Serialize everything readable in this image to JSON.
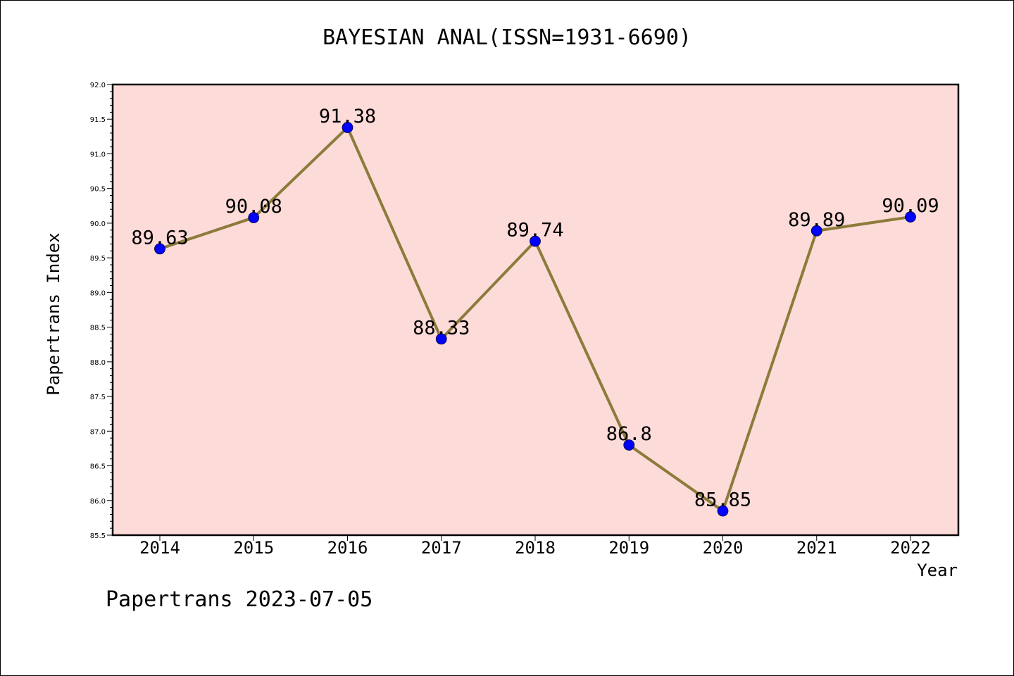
{
  "chart_data": {
    "type": "line",
    "title": "BAYESIAN ANAL(ISSN=1931-6690)",
    "xlabel": "Year",
    "ylabel": "Papertrans Index",
    "categories": [
      "2014",
      "2015",
      "2016",
      "2017",
      "2018",
      "2019",
      "2020",
      "2021",
      "2022"
    ],
    "series": [
      {
        "name": "Papertrans Index",
        "values": [
          89.63,
          90.08,
          91.38,
          88.33,
          89.74,
          86.8,
          85.85,
          89.89,
          90.09
        ],
        "labels": [
          "89.63",
          "90.08",
          "91.38",
          "88.33",
          "89.74",
          "86.8",
          "85.85",
          "89.89",
          "90.09"
        ]
      }
    ],
    "ylim": [
      85.5,
      92.0
    ],
    "yticks": [
      "85.5",
      "86.0",
      "86.5",
      "87.0",
      "87.5",
      "88.0",
      "88.5",
      "89.0",
      "89.5",
      "90.0",
      "90.5",
      "91.0",
      "91.5",
      "92.0"
    ],
    "grid": false,
    "colors": {
      "plot_background": "#fddbd9",
      "line": "#8c7b3a",
      "marker": "#0000ff",
      "axis": "#000000"
    }
  },
  "footer": "Papertrans 2023-07-05"
}
